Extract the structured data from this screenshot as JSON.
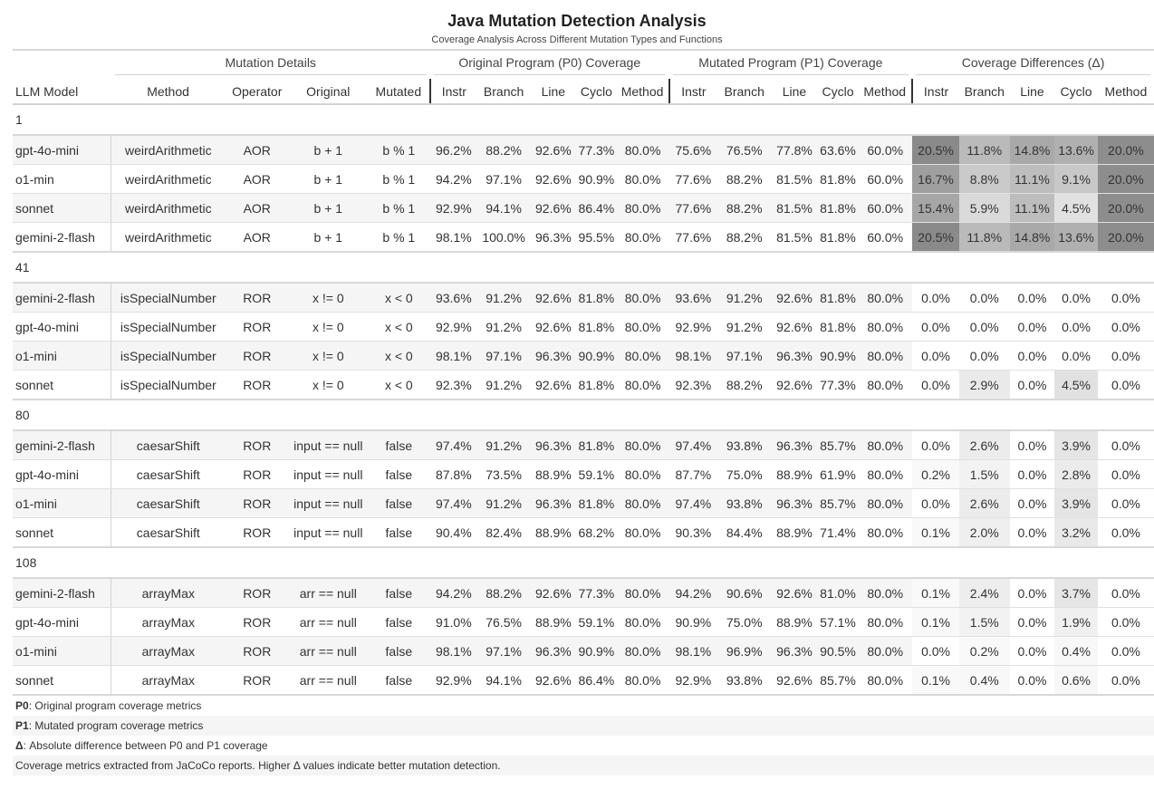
{
  "title": "Java Mutation Detection Analysis",
  "subtitle": "Coverage Analysis Across Different Mutation Types and Functions",
  "spanners": {
    "mutation": "Mutation Details",
    "p0": "Original Program (P0) Coverage",
    "p1": "Mutated Program (P1) Coverage",
    "delta": "Coverage Differences (Δ)"
  },
  "columns": {
    "model": "LLM Model",
    "method": "Method",
    "operator": "Operator",
    "original": "Original",
    "mutated": "Mutated",
    "metrics": [
      "Instr",
      "Branch",
      "Line",
      "Cyclo",
      "Method"
    ]
  },
  "heat_colors": {
    "max": "#8a8a8a",
    "min": "#ffffff"
  },
  "groups": [
    {
      "id": "1",
      "rows": [
        {
          "model": "gpt-4o-mini",
          "method": "weirdArithmetic",
          "operator": "AOR",
          "original": "b + 1",
          "mutated": "b % 1",
          "p0": [
            "96.2%",
            "88.2%",
            "92.6%",
            "77.3%",
            "80.0%"
          ],
          "p1": [
            "75.6%",
            "76.5%",
            "77.8%",
            "63.6%",
            "60.0%"
          ],
          "delta": [
            "20.5%",
            "11.8%",
            "14.8%",
            "13.6%",
            "20.0%"
          ]
        },
        {
          "model": "o1-min",
          "method": "weirdArithmetic",
          "operator": "AOR",
          "original": "b + 1",
          "mutated": "b % 1",
          "p0": [
            "94.2%",
            "97.1%",
            "92.6%",
            "90.9%",
            "80.0%"
          ],
          "p1": [
            "77.6%",
            "88.2%",
            "81.5%",
            "81.8%",
            "60.0%"
          ],
          "delta": [
            "16.7%",
            "8.8%",
            "11.1%",
            "9.1%",
            "20.0%"
          ]
        },
        {
          "model": "sonnet",
          "method": "weirdArithmetic",
          "operator": "AOR",
          "original": "b + 1",
          "mutated": "b % 1",
          "p0": [
            "92.9%",
            "94.1%",
            "92.6%",
            "86.4%",
            "80.0%"
          ],
          "p1": [
            "77.6%",
            "88.2%",
            "81.5%",
            "81.8%",
            "60.0%"
          ],
          "delta": [
            "15.4%",
            "5.9%",
            "11.1%",
            "4.5%",
            "20.0%"
          ]
        },
        {
          "model": "gemini-2-flash",
          "method": "weirdArithmetic",
          "operator": "AOR",
          "original": "b + 1",
          "mutated": "b % 1",
          "p0": [
            "98.1%",
            "100.0%",
            "96.3%",
            "95.5%",
            "80.0%"
          ],
          "p1": [
            "77.6%",
            "88.2%",
            "81.5%",
            "81.8%",
            "60.0%"
          ],
          "delta": [
            "20.5%",
            "11.8%",
            "14.8%",
            "13.6%",
            "20.0%"
          ]
        }
      ]
    },
    {
      "id": "41",
      "rows": [
        {
          "model": "gemini-2-flash",
          "method": "isSpecialNumber",
          "operator": "ROR",
          "original": "x != 0",
          "mutated": "x < 0",
          "p0": [
            "93.6%",
            "91.2%",
            "92.6%",
            "81.8%",
            "80.0%"
          ],
          "p1": [
            "93.6%",
            "91.2%",
            "92.6%",
            "81.8%",
            "80.0%"
          ],
          "delta": [
            "0.0%",
            "0.0%",
            "0.0%",
            "0.0%",
            "0.0%"
          ]
        },
        {
          "model": "gpt-4o-mini",
          "method": "isSpecialNumber",
          "operator": "ROR",
          "original": "x != 0",
          "mutated": "x < 0",
          "p0": [
            "92.9%",
            "91.2%",
            "92.6%",
            "81.8%",
            "80.0%"
          ],
          "p1": [
            "92.9%",
            "91.2%",
            "92.6%",
            "81.8%",
            "80.0%"
          ],
          "delta": [
            "0.0%",
            "0.0%",
            "0.0%",
            "0.0%",
            "0.0%"
          ]
        },
        {
          "model": "o1-mini",
          "method": "isSpecialNumber",
          "operator": "ROR",
          "original": "x != 0",
          "mutated": "x < 0",
          "p0": [
            "98.1%",
            "97.1%",
            "96.3%",
            "90.9%",
            "80.0%"
          ],
          "p1": [
            "98.1%",
            "97.1%",
            "96.3%",
            "90.9%",
            "80.0%"
          ],
          "delta": [
            "0.0%",
            "0.0%",
            "0.0%",
            "0.0%",
            "0.0%"
          ]
        },
        {
          "model": "sonnet",
          "method": "isSpecialNumber",
          "operator": "ROR",
          "original": "x != 0",
          "mutated": "x < 0",
          "p0": [
            "92.3%",
            "91.2%",
            "92.6%",
            "81.8%",
            "80.0%"
          ],
          "p1": [
            "92.3%",
            "88.2%",
            "92.6%",
            "77.3%",
            "80.0%"
          ],
          "delta": [
            "0.0%",
            "2.9%",
            "0.0%",
            "4.5%",
            "0.0%"
          ]
        }
      ]
    },
    {
      "id": "80",
      "rows": [
        {
          "model": "gemini-2-flash",
          "method": "caesarShift",
          "operator": "ROR",
          "original": "input == null",
          "mutated": "false",
          "p0": [
            "97.4%",
            "91.2%",
            "96.3%",
            "81.8%",
            "80.0%"
          ],
          "p1": [
            "97.4%",
            "93.8%",
            "96.3%",
            "85.7%",
            "80.0%"
          ],
          "delta": [
            "0.0%",
            "2.6%",
            "0.0%",
            "3.9%",
            "0.0%"
          ]
        },
        {
          "model": "gpt-4o-mini",
          "method": "caesarShift",
          "operator": "ROR",
          "original": "input == null",
          "mutated": "false",
          "p0": [
            "87.8%",
            "73.5%",
            "88.9%",
            "59.1%",
            "80.0%"
          ],
          "p1": [
            "87.7%",
            "75.0%",
            "88.9%",
            "61.9%",
            "80.0%"
          ],
          "delta": [
            "0.2%",
            "1.5%",
            "0.0%",
            "2.8%",
            "0.0%"
          ]
        },
        {
          "model": "o1-mini",
          "method": "caesarShift",
          "operator": "ROR",
          "original": "input == null",
          "mutated": "false",
          "p0": [
            "97.4%",
            "91.2%",
            "96.3%",
            "81.8%",
            "80.0%"
          ],
          "p1": [
            "97.4%",
            "93.8%",
            "96.3%",
            "85.7%",
            "80.0%"
          ],
          "delta": [
            "0.0%",
            "2.6%",
            "0.0%",
            "3.9%",
            "0.0%"
          ]
        },
        {
          "model": "sonnet",
          "method": "caesarShift",
          "operator": "ROR",
          "original": "input == null",
          "mutated": "false",
          "p0": [
            "90.4%",
            "82.4%",
            "88.9%",
            "68.2%",
            "80.0%"
          ],
          "p1": [
            "90.3%",
            "84.4%",
            "88.9%",
            "71.4%",
            "80.0%"
          ],
          "delta": [
            "0.1%",
            "2.0%",
            "0.0%",
            "3.2%",
            "0.0%"
          ]
        }
      ]
    },
    {
      "id": "108",
      "rows": [
        {
          "model": "gemini-2-flash",
          "method": "arrayMax",
          "operator": "ROR",
          "original": "arr == null",
          "mutated": "false",
          "p0": [
            "94.2%",
            "88.2%",
            "92.6%",
            "77.3%",
            "80.0%"
          ],
          "p1": [
            "94.2%",
            "90.6%",
            "92.6%",
            "81.0%",
            "80.0%"
          ],
          "delta": [
            "0.1%",
            "2.4%",
            "0.0%",
            "3.7%",
            "0.0%"
          ]
        },
        {
          "model": "gpt-4o-mini",
          "method": "arrayMax",
          "operator": "ROR",
          "original": "arr == null",
          "mutated": "false",
          "p0": [
            "91.0%",
            "76.5%",
            "88.9%",
            "59.1%",
            "80.0%"
          ],
          "p1": [
            "90.9%",
            "75.0%",
            "88.9%",
            "57.1%",
            "80.0%"
          ],
          "delta": [
            "0.1%",
            "1.5%",
            "0.0%",
            "1.9%",
            "0.0%"
          ]
        },
        {
          "model": "o1-mini",
          "method": "arrayMax",
          "operator": "ROR",
          "original": "arr == null",
          "mutated": "false",
          "p0": [
            "98.1%",
            "97.1%",
            "96.3%",
            "90.9%",
            "80.0%"
          ],
          "p1": [
            "98.1%",
            "96.9%",
            "96.3%",
            "90.5%",
            "80.0%"
          ],
          "delta": [
            "0.0%",
            "0.2%",
            "0.0%",
            "0.4%",
            "0.0%"
          ]
        },
        {
          "model": "sonnet",
          "method": "arrayMax",
          "operator": "ROR",
          "original": "arr == null",
          "mutated": "false",
          "p0": [
            "92.9%",
            "94.1%",
            "92.6%",
            "86.4%",
            "80.0%"
          ],
          "p1": [
            "92.9%",
            "93.8%",
            "92.6%",
            "85.7%",
            "80.0%"
          ],
          "delta": [
            "0.1%",
            "0.4%",
            "0.0%",
            "0.6%",
            "0.0%"
          ]
        }
      ]
    }
  ],
  "footnotes": [
    {
      "bold": "P0",
      "text": ": Original program coverage metrics"
    },
    {
      "bold": "P1",
      "text": ": Mutated program coverage metrics"
    },
    {
      "bold": "Δ",
      "text": ": Absolute difference between P0 and P1 coverage"
    },
    {
      "bold": "",
      "text": "Coverage metrics extracted from JaCoCo reports. Higher Δ values indicate better mutation detection."
    }
  ],
  "chart_data": {
    "type": "table",
    "title": "Java Mutation Detection Analysis",
    "subtitle": "Coverage Analysis Across Different Mutation Types and Functions",
    "column_groups": [
      "Mutation Details",
      "Original Program (P0) Coverage",
      "Mutated Program (P1) Coverage",
      "Coverage Differences (Δ)"
    ],
    "columns": [
      "LLM Model",
      "Method",
      "Operator",
      "Original",
      "Mutated",
      "P0 Instr",
      "P0 Branch",
      "P0 Line",
      "P0 Cyclo",
      "P0 Method",
      "P1 Instr",
      "P1 Branch",
      "P1 Line",
      "P1 Cyclo",
      "P1 Method",
      "Δ Instr",
      "Δ Branch",
      "Δ Line",
      "Δ Cyclo",
      "Δ Method"
    ],
    "row_groups": [
      "1",
      "41",
      "80",
      "108"
    ],
    "heatmap_columns": [
      "Δ Instr",
      "Δ Branch",
      "Δ Line",
      "Δ Cyclo",
      "Δ Method"
    ],
    "delta_max_by_metric": {
      "Instr": 20.5,
      "Branch": 11.8,
      "Line": 14.8,
      "Cyclo": 13.6,
      "Method": 20.0
    }
  }
}
